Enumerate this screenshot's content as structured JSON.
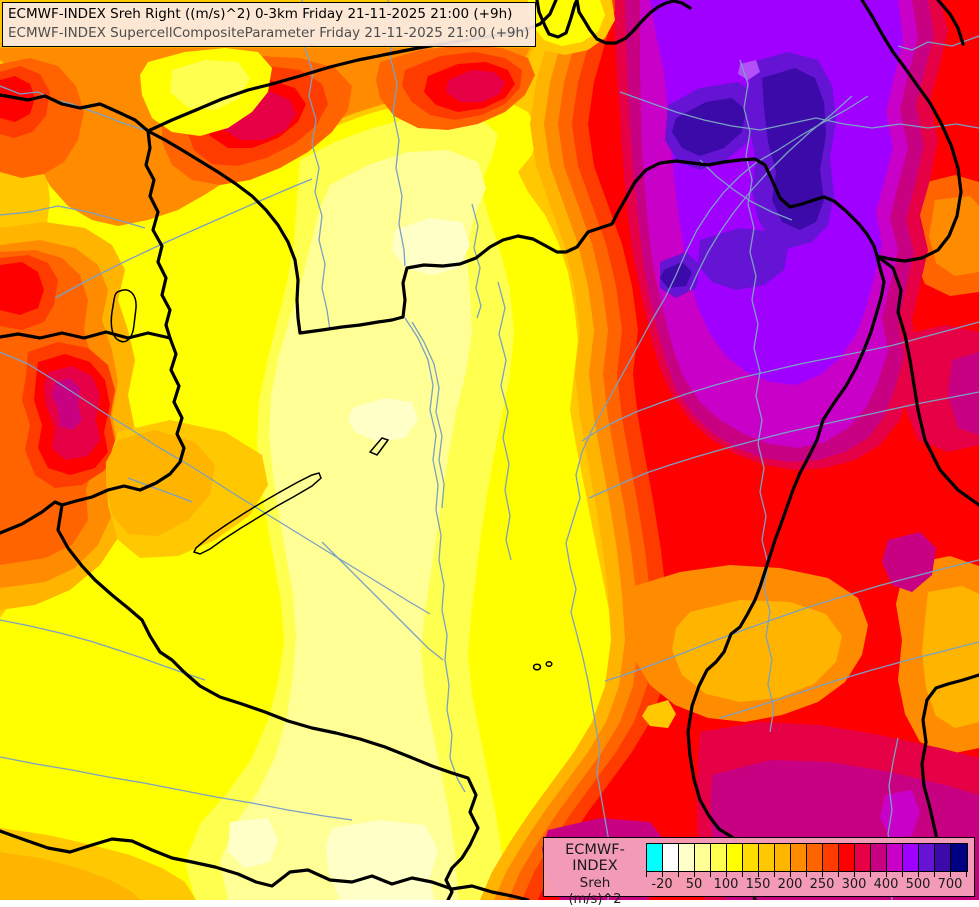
{
  "header": {
    "line1": "ECMWF-INDEX Sreh Right ((m/s)^2) 0-3km Friday 21-11-2025 21:00 (+9h)",
    "line2": "ECMWF-INDEX SupercellCompositeParameter Friday 21-11-2025 21:00 (+9h)"
  },
  "legend": {
    "model": "ECMWF-INDEX",
    "parameter": "Sreh",
    "units": "(m/s)^2",
    "background": "rgba(245,166,188,0.93)",
    "tick_labels": [
      "-20",
      "50",
      "100",
      "150",
      "200",
      "250",
      "300",
      "400",
      "500",
      "700"
    ],
    "swatches": [
      {
        "color": "#00FFFF"
      },
      {
        "color": "#FFFFFF"
      },
      {
        "color": "#FFFFC8"
      },
      {
        "color": "#FFFF96"
      },
      {
        "color": "#FFFF50"
      },
      {
        "color": "#FFFF00"
      },
      {
        "color": "#FFDC00"
      },
      {
        "color": "#FFC800"
      },
      {
        "color": "#FFB400"
      },
      {
        "color": "#FF8C00"
      },
      {
        "color": "#FF6400"
      },
      {
        "color": "#FF3C00"
      },
      {
        "color": "#FF0000"
      },
      {
        "color": "#E60046"
      },
      {
        "color": "#C80082"
      },
      {
        "color": "#C800C8"
      },
      {
        "color": "#A000FF"
      },
      {
        "color": "#6414D2"
      },
      {
        "color": "#3C0AA8"
      },
      {
        "color": "#000082"
      }
    ]
  },
  "map": {
    "border_color": "#000000",
    "river_color": "#7AA0C4",
    "lake_outline_color": "#000000",
    "highlight_violet": "#B450FA"
  }
}
